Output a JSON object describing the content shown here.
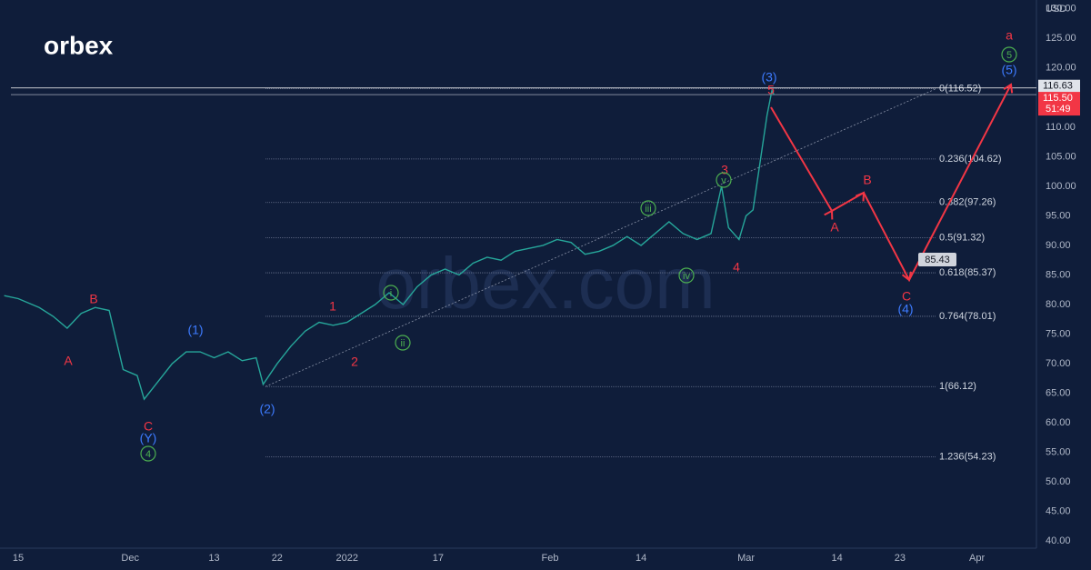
{
  "logo": "orbex",
  "watermark": "orbex.com",
  "chart_data": {
    "type": "line",
    "currency": "USD",
    "x": [
      -2,
      0,
      3,
      5,
      7,
      9,
      11,
      13,
      14,
      15,
      17,
      18,
      20,
      22,
      24,
      26,
      28,
      30,
      32,
      34,
      35,
      37,
      39,
      41,
      43,
      45,
      47,
      49,
      51,
      53,
      55,
      57,
      59,
      61,
      63,
      65,
      67,
      69,
      71,
      73,
      75,
      77,
      79,
      81,
      83,
      85,
      87,
      89,
      91,
      93,
      95,
      97,
      99,
      100.5,
      101.5,
      103,
      104,
      105,
      106,
      107,
      107.7,
      108
    ],
    "series": [
      {
        "color": "#26a69a",
        "values": [
          81.5,
          81,
          79.5,
          78,
          76,
          78.5,
          79.5,
          79,
          74,
          69,
          68,
          64,
          67,
          70,
          72,
          72,
          71,
          72,
          70.5,
          71,
          66.5,
          70,
          73,
          75.5,
          77,
          76.5,
          77,
          78.5,
          80,
          82,
          80,
          83,
          85,
          86,
          85,
          87,
          88,
          87.5,
          89,
          89.5,
          90,
          91,
          90.5,
          88.5,
          89,
          90,
          91.5,
          90,
          92,
          94,
          92,
          91,
          92,
          100,
          93,
          91,
          95,
          96,
          104,
          112,
          116.2,
          115.5
        ]
      }
    ],
    "xlim": [
      -2.6,
      142.9
    ],
    "xticks": [
      {
        "value": 0,
        "label": "15"
      },
      {
        "value": 16,
        "label": "Dec"
      },
      {
        "value": 28,
        "label": "13"
      },
      {
        "value": 37,
        "label": "22"
      },
      {
        "value": 47,
        "label": "2022"
      },
      {
        "value": 60,
        "label": "17"
      },
      {
        "value": 76,
        "label": "Feb"
      },
      {
        "value": 89,
        "label": "14"
      },
      {
        "value": 104,
        "label": "Mar"
      },
      {
        "value": 117,
        "label": "14"
      },
      {
        "value": 126,
        "label": "23"
      },
      {
        "value": 137,
        "label": "Apr"
      }
    ],
    "ylim": [
      38.8,
      131.5
    ],
    "yticks": [
      {
        "value": 40,
        "label": "40.00"
      },
      {
        "value": 45,
        "label": "45.00"
      },
      {
        "value": 50,
        "label": "50.00"
      },
      {
        "value": 55,
        "label": "55.00"
      },
      {
        "value": 60,
        "label": "60.00"
      },
      {
        "value": 65,
        "label": "65.00"
      },
      {
        "value": 70,
        "label": "70.00"
      },
      {
        "value": 75,
        "label": "75.00"
      },
      {
        "value": 80,
        "label": "80.00"
      },
      {
        "value": 85,
        "label": "85.00"
      },
      {
        "value": 90,
        "label": "90.00"
      },
      {
        "value": 95,
        "label": "95.00"
      },
      {
        "value": 100,
        "label": "100.00"
      },
      {
        "value": 105,
        "label": "105.00"
      },
      {
        "value": 110,
        "label": "110.00"
      },
      {
        "value": 115,
        "label": "115.00"
      },
      {
        "value": 120,
        "label": "120.00"
      },
      {
        "value": 125,
        "label": "125.00"
      },
      {
        "value": 130,
        "label": "130.00"
      }
    ],
    "fib_levels": [
      {
        "value": 116.52,
        "label": "0(116.52)"
      },
      {
        "value": 104.62,
        "label": "0.236(104.62)"
      },
      {
        "value": 97.26,
        "label": "0.382(97.26)"
      },
      {
        "value": 91.32,
        "label": "0.5(91.32)"
      },
      {
        "value": 85.37,
        "label": "0.618(85.37)"
      },
      {
        "value": 78.01,
        "label": "0.764(78.01)"
      },
      {
        "value": 66.12,
        "label": "1(66.12)"
      },
      {
        "value": 54.23,
        "label": "1.236(54.23)"
      }
    ],
    "price_tags": [
      {
        "value": 116.63,
        "label": "116.63"
      },
      {
        "value": 115.5,
        "label": "115.50"
      }
    ],
    "countdown": "51:49",
    "target_label": "85.43",
    "red_labels": [
      "A",
      "B",
      "C",
      "1",
      "2",
      "3",
      "4",
      "5",
      "A",
      "B",
      "C",
      "a"
    ],
    "blue_labels": [
      "(Y)",
      "(1)",
      "(2)",
      "(3)",
      "(5)",
      "(4)"
    ],
    "green_labels": [
      "4",
      "i",
      "ii",
      "iii",
      "iv",
      "v",
      "5"
    ]
  }
}
